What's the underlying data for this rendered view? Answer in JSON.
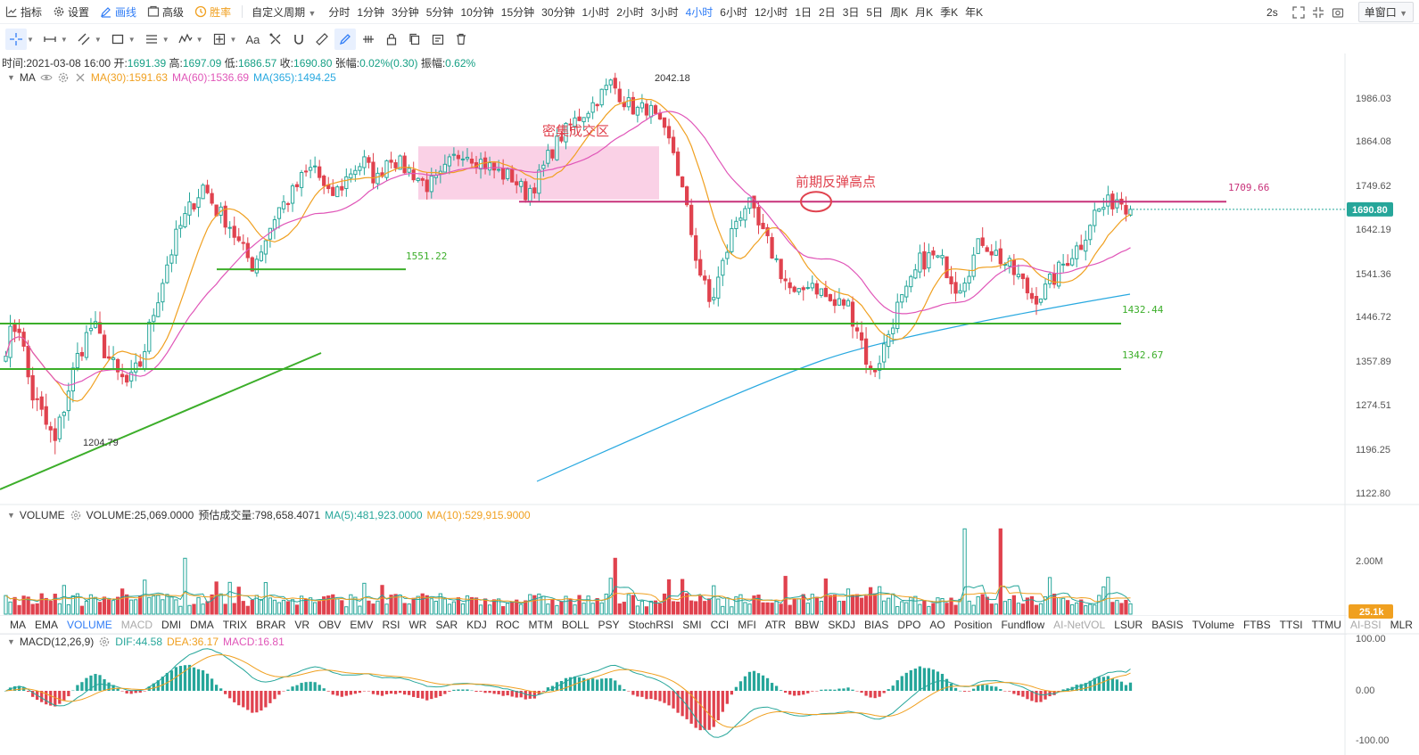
{
  "toolbar": {
    "items": [
      {
        "label": "指标",
        "icon": "indicator-icon"
      },
      {
        "label": "设置",
        "icon": "gear-icon"
      },
      {
        "label": "画线",
        "icon": "pencil-icon",
        "active": true
      },
      {
        "label": "高级",
        "icon": "advanced-icon"
      },
      {
        "label": "胜率",
        "icon": "win-rate-icon",
        "highlight": true
      }
    ],
    "custom_period": "自定义周期",
    "periods": [
      "分时",
      "1分钟",
      "3分钟",
      "5分钟",
      "10分钟",
      "15分钟",
      "30分钟",
      "1小时",
      "2小时",
      "3小时",
      "4小时",
      "6小时",
      "12小时",
      "1日",
      "2日",
      "3日",
      "5日",
      "周K",
      "月K",
      "季K",
      "年K"
    ],
    "active_period": "4小时",
    "refresh": "2s",
    "window_mode": "单窗口"
  },
  "ohlc_bar": {
    "time_label": "时间:",
    "time": "2021-03-08 16:00",
    "open_label": "开:",
    "open": "1691.39",
    "high_label": "高:",
    "high": "1697.09",
    "low_label": "低:",
    "low": "1686.57",
    "close_label": "收:",
    "close": "1690.80",
    "change_label": "张幅:",
    "change": "0.02%(0.30)",
    "amplitude_label": "振幅:",
    "amplitude": "0.62%"
  },
  "ma_legend": {
    "name": "MA",
    "ma30": "MA(30):1591.63",
    "ma60": "MA(60):1536.69",
    "ma365": "MA(365):1494.25"
  },
  "volume_legend": {
    "name": "VOLUME",
    "volume": "VOLUME:25,069.0000",
    "estimate": "预估成交量:798,658.4071",
    "ma5": "MA(5):481,923.0000",
    "ma10": "MA(10):529,915.9000"
  },
  "macd_legend": {
    "name": "MACD(12,26,9)",
    "dif": "DIF:44.58",
    "dea": "DEA:36.17",
    "macd": "MACD:16.81"
  },
  "indicator_tabs": [
    "MA",
    "EMA",
    "VOLUME",
    "MACD",
    "DMI",
    "DMA",
    "TRIX",
    "BRAR",
    "VR",
    "OBV",
    "EMV",
    "RSI",
    "WR",
    "SAR",
    "KDJ",
    "ROC",
    "MTM",
    "BOLL",
    "PSY",
    "StochRSI",
    "SMI",
    "CCI",
    "MFI",
    "ATR",
    "BBW",
    "SKDJ",
    "BIAS",
    "DPO",
    "AO",
    "Position",
    "Fundflow",
    "AI-NetVOL",
    "LSUR",
    "BASIS",
    "TVolume",
    "FTBS",
    "TTSI",
    "TTMU",
    "AI-BSI",
    "MLR"
  ],
  "active_indicator_tabs": [
    "VOLUME"
  ],
  "dim_indicator_tabs": [
    "MACD",
    "AI-NetVOL",
    "AI-BSI"
  ],
  "annotations": {
    "zone_label": "密集成交区",
    "rebound_label": "前期反弹高点",
    "high_marker": "2042.18",
    "low_marker": "1204.79",
    "level_1551": "1551.22",
    "level_1709": "1709.66",
    "level_1432": "1432.44",
    "level_1342": "1342.67",
    "current_price": "1690.80",
    "current_volume": "25.1k"
  },
  "colors": {
    "up": "#26a69a",
    "down": "#e0424e",
    "ma30": "#f0a020",
    "ma60": "#e056b8",
    "ma365": "#29a9e0",
    "support": "#3cae2a",
    "resistance": "#c8327a",
    "zone": "#f7b8d8",
    "accent": "#2f7cf6"
  },
  "chart_data": [
    {
      "type": "candlestick",
      "title": "",
      "y_ticks": [
        "1986.03",
        "1864.08",
        "1749.62",
        "1642.19",
        "1541.36",
        "1446.72",
        "1357.89",
        "1274.51",
        "1196.25",
        "1122.80"
      ],
      "ylim": [
        1100,
        2080
      ],
      "series": [
        {
          "name": "MA(30)",
          "last": 1591.63
        },
        {
          "name": "MA(60)",
          "last": 1536.69
        },
        {
          "name": "MA(365)",
          "last": 1494.25
        }
      ],
      "ohlc_last": {
        "open": 1691.39,
        "high": 1697.09,
        "low": 1686.57,
        "close": 1690.8
      },
      "key_points": [
        {
          "label": "2042.18",
          "value": 2042.18
        },
        {
          "label": "1204.79",
          "value": 1204.79
        }
      ],
      "horizontal_levels": [
        1709.66,
        1551.22,
        1432.44,
        1342.67
      ],
      "zone": {
        "label": "密集成交区",
        "from": 1715,
        "to": 1850
      },
      "anchors": [
        1390,
        1440,
        1300,
        1250,
        1205,
        1300,
        1380,
        1430,
        1380,
        1330,
        1310,
        1360,
        1460,
        1560,
        1640,
        1700,
        1750,
        1690,
        1660,
        1600,
        1560,
        1620,
        1690,
        1720,
        1770,
        1800,
        1720,
        1740,
        1790,
        1810,
        1760,
        1830,
        1800,
        1780,
        1750,
        1760,
        1810,
        1840,
        1820,
        1800,
        1780,
        1770,
        1730,
        1760,
        1830,
        1880,
        1920,
        1950,
        1990,
        2030,
        1980,
        1950,
        1960,
        1900,
        1840,
        1700,
        1560,
        1470,
        1560,
        1660,
        1710,
        1640,
        1590,
        1530,
        1480,
        1530,
        1500,
        1470,
        1480,
        1420,
        1330,
        1380,
        1460,
        1500,
        1570,
        1580,
        1560,
        1510,
        1560,
        1620,
        1590,
        1560,
        1530,
        1490,
        1500,
        1540,
        1580,
        1610,
        1680,
        1700,
        1720,
        1691
      ]
    },
    {
      "type": "bar",
      "title": "VOLUME",
      "y_ticks": [
        "2.00M"
      ],
      "last": 25069,
      "ma5": 481923,
      "ma10": 529915.9
    },
    {
      "type": "bar",
      "title": "MACD(12,26,9)",
      "y_ticks": [
        "100.00",
        "0.00",
        "-100.00"
      ],
      "ylim": [
        -100,
        100
      ],
      "dif": 44.58,
      "dea": 36.17,
      "macd": 16.81
    }
  ]
}
